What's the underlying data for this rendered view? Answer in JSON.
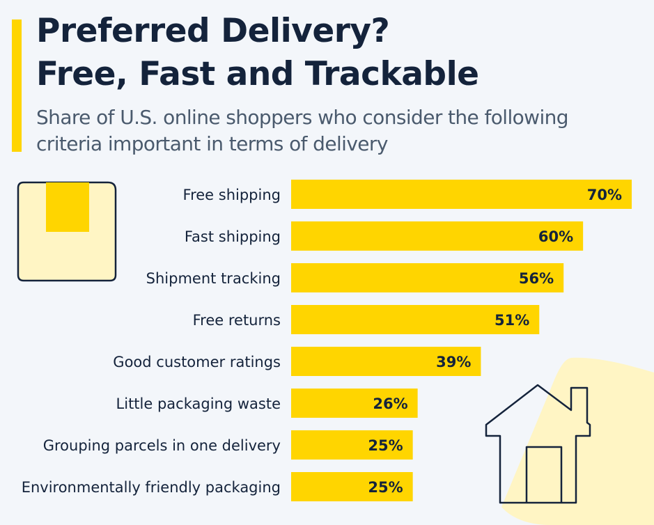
{
  "header": {
    "title_line1": "Preferred Delivery?",
    "title_line2": "Free, Fast and Trackable",
    "subtitle_line1": "Share of U.S. online shoppers who consider the following",
    "subtitle_line2": "criteria important in terms of delivery"
  },
  "colors": {
    "bar": "#ffd500",
    "title": "#14233b",
    "label": "#14233b",
    "background": "#f3f6fa",
    "accent": "#ffd500",
    "light_yellow": "#fff5c4"
  },
  "icons": [
    "package-box-icon",
    "house-icon"
  ],
  "chart_data": {
    "type": "bar",
    "orientation": "horizontal",
    "title": "Preferred Delivery? Free, Fast and Trackable",
    "subtitle": "Share of U.S. online shoppers who consider the following criteria important in terms of delivery",
    "categories": [
      "Free shipping",
      "Fast shipping",
      "Shipment tracking",
      "Free returns",
      "Good customer ratings",
      "Little packaging waste",
      "Grouping parcels in one delivery",
      "Environmentally friendly packaging"
    ],
    "values": [
      70,
      60,
      56,
      51,
      39,
      26,
      25,
      25
    ],
    "value_labels": [
      "70%",
      "60%",
      "56%",
      "51%",
      "39%",
      "26%",
      "25%",
      "25%"
    ],
    "xlabel": "",
    "ylabel": "",
    "xlim": [
      0,
      70
    ],
    "grid": false,
    "legend": "none"
  }
}
